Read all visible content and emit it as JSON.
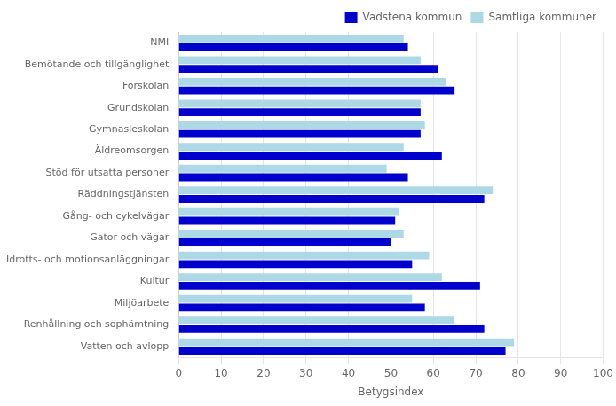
{
  "chart_data": {
    "type": "bar",
    "orientation": "horizontal",
    "categories": [
      "NMI",
      "Bemötande och tillgänglighet",
      "Förskolan",
      "Grundskolan",
      "Gymnasieskolan",
      "Äldreomsorgen",
      "Stöd för utsatta personer",
      "Räddningstjänsten",
      "Gång- och cykelvägar",
      "Gator och vägar",
      "Idrotts- och motionsanläggningar",
      "Kultur",
      "Miljöarbete",
      "Renhållning och sophämtning",
      "Vatten och avlopp"
    ],
    "series": [
      {
        "name": "Samtliga kommuner",
        "color": "#add8e6",
        "values": [
          53,
          57,
          63,
          57,
          58,
          53,
          49,
          74,
          52,
          53,
          59,
          62,
          55,
          65,
          79
        ]
      },
      {
        "name": "Vadstena kommun",
        "color": "#0000cc",
        "values": [
          54,
          61,
          65,
          57,
          57,
          62,
          54,
          72,
          51,
          50,
          55,
          71,
          58,
          72,
          77
        ]
      }
    ],
    "xlabel": "Betygsindex",
    "xlim": [
      0,
      100
    ],
    "xticks": [
      0,
      10,
      20,
      30,
      40,
      50,
      60,
      70,
      80,
      90,
      100
    ],
    "grid": true,
    "legend": "upper right"
  }
}
